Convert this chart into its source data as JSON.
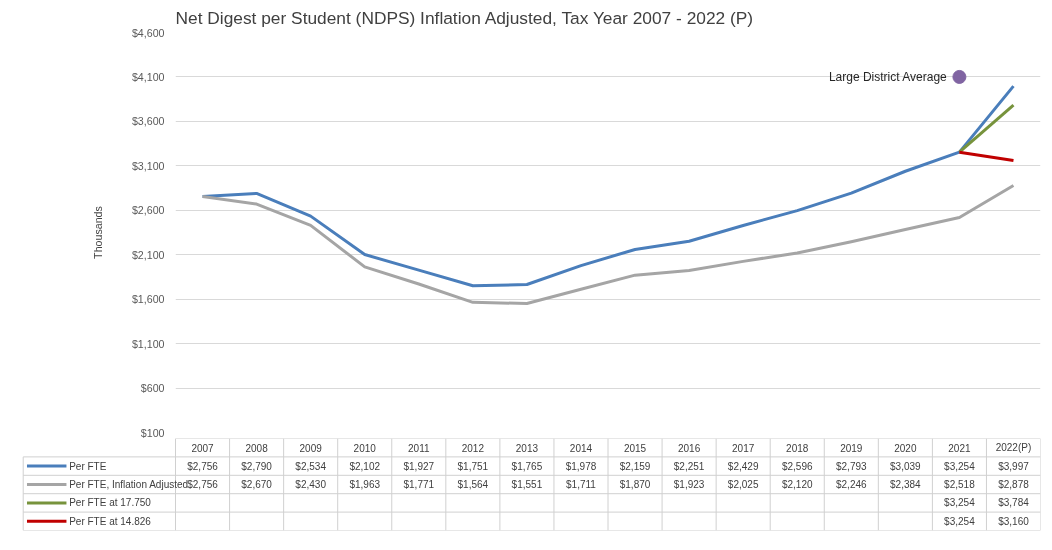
{
  "chart_data": {
    "type": "line",
    "title": "Net Digest per Student (NDPS) Inflation Adjusted, Tax Year 2007 - 2022 (P)",
    "ylabel": "Thousands",
    "categories": [
      "2007",
      "2008",
      "2009",
      "2010",
      "2011",
      "2012",
      "2013",
      "2014",
      "2015",
      "2016",
      "2017",
      "2018",
      "2019",
      "2020",
      "2021",
      "2022(P)"
    ],
    "ylim": [
      100,
      4600
    ],
    "yticks": [
      {
        "value": 100,
        "label": "$100"
      },
      {
        "value": 600,
        "label": "$600"
      },
      {
        "value": 1100,
        "label": "$1,100"
      },
      {
        "value": 1600,
        "label": "$1,600"
      },
      {
        "value": 2100,
        "label": "$2,100"
      },
      {
        "value": 2600,
        "label": "$2,600"
      },
      {
        "value": 3100,
        "label": "$3,100"
      },
      {
        "value": 3600,
        "label": "$3,600"
      },
      {
        "value": 4100,
        "label": "$4,100"
      },
      {
        "value": 4600,
        "label": "$4,600"
      }
    ],
    "grid": "y",
    "legend": "bottom",
    "line_style": "solid",
    "marker": "none",
    "series": [
      {
        "name": "Per FTE",
        "color": "#4a7ebb",
        "values": [
          2756,
          2790,
          2534,
          2102,
          1927,
          1751,
          1765,
          1978,
          2159,
          2251,
          2429,
          2596,
          2793,
          3039,
          3254,
          3997
        ],
        "value_labels": [
          "$2,756",
          "$2,790",
          "$2,534",
          "$2,102",
          "$1,927",
          "$1,751",
          "$1,765",
          "$1,978",
          "$2,159",
          "$2,251",
          "$2,429",
          "$2,596",
          "$2,793",
          "$3,039",
          "$3,254",
          "$3,997"
        ]
      },
      {
        "name": "Per FTE, Inflation Adjusted",
        "color": "#a5a5a5",
        "values": [
          2756,
          2670,
          2430,
          1963,
          1771,
          1564,
          1551,
          1711,
          1870,
          1923,
          2025,
          2120,
          2246,
          2384,
          2518,
          2878
        ],
        "value_labels": [
          "$2,756",
          "$2,670",
          "$2,430",
          "$1,963",
          "$1,771",
          "$1,564",
          "$1,551",
          "$1,711",
          "$1,870",
          "$1,923",
          "$2,025",
          "$2,120",
          "$2,246",
          "$2,384",
          "$2,518",
          "$2,878"
        ]
      },
      {
        "name": "Per FTE at 17.750",
        "color": "#77933c",
        "values": [
          null,
          null,
          null,
          null,
          null,
          null,
          null,
          null,
          null,
          null,
          null,
          null,
          null,
          null,
          3254,
          3784
        ],
        "value_labels": [
          null,
          null,
          null,
          null,
          null,
          null,
          null,
          null,
          null,
          null,
          null,
          null,
          null,
          null,
          "$3,254",
          "$3,784"
        ]
      },
      {
        "name": "Per FTE at 14.826",
        "color": "#c00000",
        "values": [
          null,
          null,
          null,
          null,
          null,
          null,
          null,
          null,
          null,
          null,
          null,
          null,
          null,
          null,
          3254,
          3160
        ],
        "value_labels": [
          null,
          null,
          null,
          null,
          null,
          null,
          null,
          null,
          null,
          null,
          null,
          null,
          null,
          null,
          "$3,254",
          "$3,160"
        ]
      },
      {
        "name": "Large District Average",
        "type": "scatter",
        "marker": "circle",
        "color": "#8064a2",
        "values": [
          null,
          null,
          null,
          null,
          null,
          null,
          null,
          null,
          null,
          null,
          null,
          null,
          null,
          null,
          4100,
          null
        ]
      }
    ]
  }
}
